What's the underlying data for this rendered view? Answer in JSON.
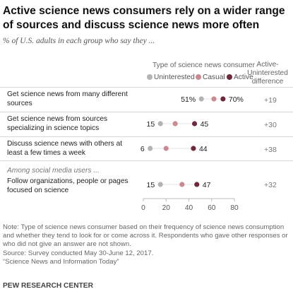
{
  "title": "Active science news consumers rely on a wider range of sources and discuss science news more often",
  "subtitle": "% of U.S. adults in each group who say they ...",
  "legend_title": "Type of science news consumer",
  "diff_header": "Active-Uninterested difference",
  "subgroup_label": "Among social media users ...",
  "note": "Note: Type of science news consumer based on their frequency of science news consumption and whether they tend to look for or come across it. Respondents who gave other responses or who did not give an answer are not shown.",
  "source": "Source: Survey conducted May 30-June 12, 2017.",
  "report": "“Science News and Information Today”",
  "brand": "PEW RESEARCH CENTER",
  "colors": {
    "uninterested": "#b3b3b3",
    "casual": "#c98a90",
    "active": "#6e2a3b"
  },
  "chart_data": {
    "type": "scatter",
    "xlim": [
      0,
      80
    ],
    "x_ticks": [
      "0",
      "20",
      "40",
      "60",
      "80"
    ],
    "series": [
      {
        "name": "Uninterested",
        "values": [
          51,
          15,
          6,
          15
        ]
      },
      {
        "name": "Casual",
        "values": [
          62,
          28,
          20,
          34
        ]
      },
      {
        "name": "Active",
        "values": [
          70,
          45,
          44,
          47
        ]
      }
    ],
    "categories": [
      "Get science news from many different sources",
      "Get science news from sources specializing in science topics",
      "Discuss science news with others at least a few times a week",
      "Follow organizations, people or pages focused on science"
    ],
    "value_labels": [
      {
        "uninterested": "51%",
        "active": "70%"
      },
      {
        "uninterested": "15",
        "active": "45"
      },
      {
        "uninterested": "6",
        "active": "44"
      },
      {
        "uninterested": "15",
        "active": "47"
      }
    ],
    "differences": [
      "+19",
      "+30",
      "+38",
      "+32"
    ]
  }
}
